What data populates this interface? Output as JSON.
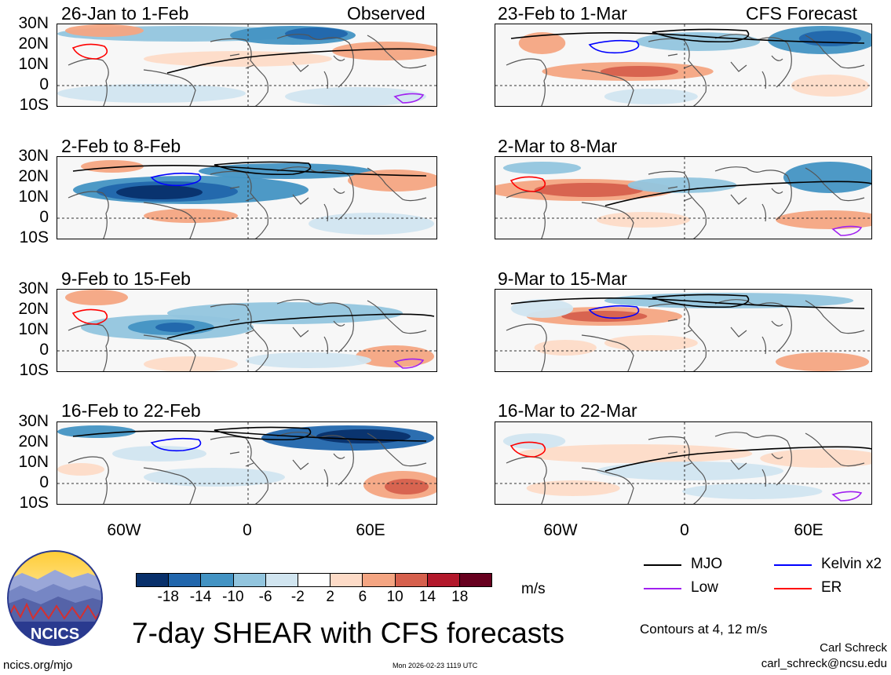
{
  "panels": {
    "obs": [
      {
        "title": "26-Jan to 1-Feb",
        "label": "Observed"
      },
      {
        "title": "2-Feb to 8-Feb"
      },
      {
        "title": "9-Feb to 15-Feb"
      },
      {
        "title": "16-Feb to 22-Feb"
      }
    ],
    "fcst": [
      {
        "title": "23-Feb to 1-Mar",
        "label": "CFS Forecast"
      },
      {
        "title": "2-Mar to 8-Mar"
      },
      {
        "title": "9-Mar to 15-Mar"
      },
      {
        "title": "16-Mar to 22-Mar"
      }
    ]
  },
  "axes": {
    "lat_labels": [
      "30N",
      "20N",
      "10N",
      "0",
      "10S"
    ],
    "lon_labels": [
      "60W",
      "0",
      "60E"
    ]
  },
  "colorbar": {
    "colors": [
      "#08306b",
      "#2166ac",
      "#4393c3",
      "#92c5de",
      "#d1e5f0",
      "#ffffff",
      "#fddbc7",
      "#f4a582",
      "#d6604d",
      "#b2182b",
      "#67001f"
    ],
    "ticks": [
      "-18",
      "-14",
      "-10",
      "-6",
      "-2",
      "2",
      "6",
      "10",
      "14",
      "18"
    ],
    "units": "m/s"
  },
  "legend": {
    "mjo": {
      "label": "MJO",
      "color": "#000000"
    },
    "kelvin": {
      "label": "Kelvin x2",
      "color": "#0000ff"
    },
    "low": {
      "label": "Low",
      "color": "#a020f0"
    },
    "er": {
      "label": "ER",
      "color": "#ff0000"
    }
  },
  "contour_note": "Contours at 4, 12 m/s",
  "main_title": "7-day SHEAR with CFS forecasts",
  "logo_text": "NCICS",
  "footer": {
    "url": "ncics.org/mjo",
    "timestamp": "Mon 2026-02-23 1119 UTC",
    "author": "Carl Schreck",
    "email": "carl_schreck@ncsu.edu"
  }
}
